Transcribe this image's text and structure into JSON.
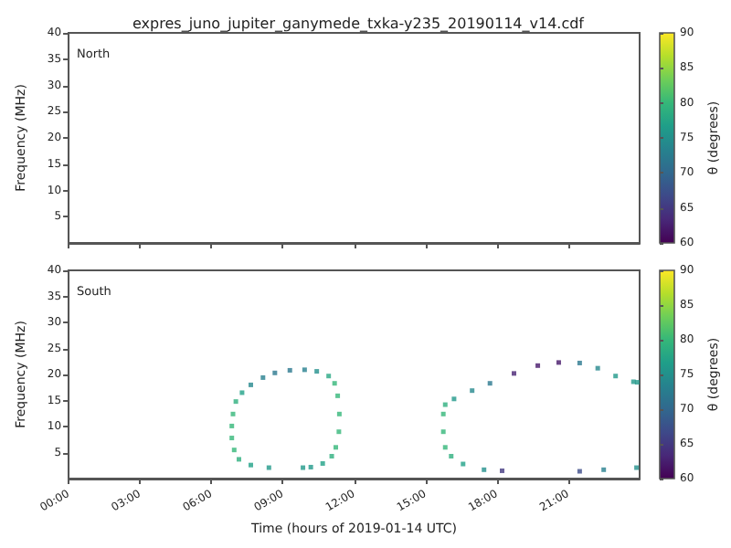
{
  "chart_data": [
    {
      "type": "scatter",
      "title": "expres_juno_jupiter_ganymede_txka-y235_20190114_v14.cdf",
      "ylabel": "Frequency (MHz)",
      "clabel": "θ (degrees)",
      "annotations": [
        "North"
      ],
      "xlim": [
        0,
        24
      ],
      "xticks": [
        {
          "value": 0,
          "label": null
        },
        {
          "value": 3,
          "label": null
        },
        {
          "value": 6,
          "label": null
        },
        {
          "value": 9,
          "label": null
        },
        {
          "value": 12,
          "label": null
        },
        {
          "value": 15,
          "label": null
        },
        {
          "value": 18,
          "label": null
        },
        {
          "value": 21,
          "label": null
        }
      ],
      "ylim": [
        0,
        40
      ],
      "yticks": [
        5,
        10,
        15,
        20,
        25,
        30,
        35,
        40
      ],
      "clim": [
        60,
        90
      ],
      "cticks": [
        60,
        65,
        70,
        75,
        80,
        85,
        90
      ],
      "tick_labels": "y",
      "grid": false,
      "marker": "square"
    },
    {
      "type": "scatter",
      "xlabel": "Time (hours of 2019-01-14 UTC)",
      "ylabel": "Frequency (MHz)",
      "clabel": "θ (degrees)",
      "annotations": [
        "South"
      ],
      "x": [
        8.42,
        7.66,
        7.16,
        6.96,
        6.86,
        6.86,
        6.91,
        7.03,
        7.29,
        7.66,
        8.17,
        8.67,
        9.3,
        9.92,
        10.43,
        10.93,
        11.18,
        11.31,
        11.38,
        11.36,
        11.23,
        11.06,
        10.68,
        10.18,
        9.85,
        15.75,
        15.75,
        15.83,
        16.08,
        16.58,
        17.46,
        18.22,
        21.48,
        22.49,
        23.87,
        15.83,
        16.2,
        16.96,
        17.71,
        18.72,
        19.72,
        20.6,
        21.48,
        22.24,
        22.99,
        23.74,
        23.9
      ],
      "values": [
        2.1,
        2.6,
        3.7,
        5.5,
        7.8,
        10.1,
        12.4,
        14.8,
        16.5,
        18,
        19.4,
        20.3,
        20.8,
        20.9,
        20.6,
        19.7,
        18.3,
        15.9,
        12.4,
        9,
        6,
        4.3,
        2.9,
        2.2,
        2.1,
        12.4,
        9,
        6,
        4.3,
        2.8,
        1.7,
        1.5,
        1.4,
        1.7,
        2.1,
        14.2,
        15.3,
        16.9,
        18.3,
        20.2,
        21.7,
        22.3,
        22.2,
        21.2,
        19.7,
        18.6,
        18.5
      ],
      "cvalues": [
        76,
        77,
        79,
        80,
        80,
        80,
        80,
        79,
        77,
        74,
        73,
        72,
        72,
        73,
        75,
        78,
        80,
        80,
        80,
        80,
        80,
        79,
        77,
        76,
        76,
        80,
        80,
        80,
        79,
        77,
        75,
        65,
        67,
        73,
        75,
        79,
        76,
        74,
        72,
        63,
        62,
        62,
        72,
        74,
        76,
        76,
        76
      ],
      "xlim": [
        0,
        24
      ],
      "xticks": [
        {
          "value": 0,
          "label": "00:00"
        },
        {
          "value": 3,
          "label": "03:00"
        },
        {
          "value": 6,
          "label": "06:00"
        },
        {
          "value": 9,
          "label": "09:00"
        },
        {
          "value": 12,
          "label": "12:00"
        },
        {
          "value": 15,
          "label": "15:00"
        },
        {
          "value": 18,
          "label": "18:00"
        },
        {
          "value": 21,
          "label": "21:00"
        }
      ],
      "ylim": [
        0,
        40
      ],
      "yticks": [
        5,
        10,
        15,
        20,
        25,
        30,
        35,
        40
      ],
      "clim": [
        60,
        90
      ],
      "cticks": [
        60,
        65,
        70,
        75,
        80,
        85,
        90
      ],
      "grid": false,
      "marker": "square"
    }
  ]
}
